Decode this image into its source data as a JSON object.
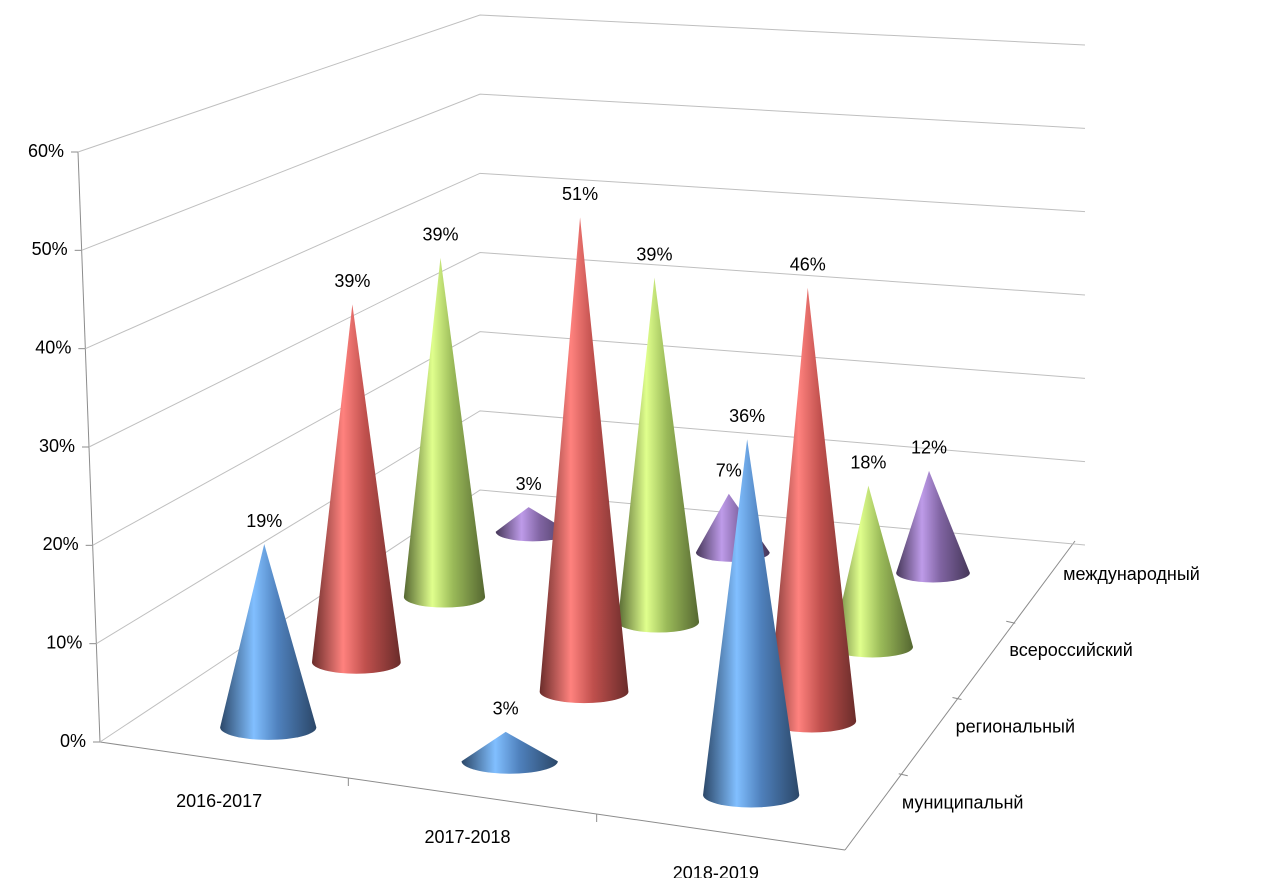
{
  "chart_data": {
    "type": "cone",
    "categories": [
      "2016-2017",
      "2017-2018",
      "2018-2019"
    ],
    "series": [
      {
        "name": "муниципальнй",
        "color": "#4f81bd",
        "values": [
          19,
          3,
          36
        ],
        "value_labels": [
          "19%",
          "3%",
          "36%"
        ]
      },
      {
        "name": "региональный",
        "color": "#c0504d",
        "values": [
          39,
          51,
          46
        ],
        "value_labels": [
          "39%",
          "51%",
          "46%"
        ]
      },
      {
        "name": "всероссийский",
        "color": "#9bbb59",
        "values": [
          39,
          39,
          18
        ],
        "value_labels": [
          "39%",
          "39%",
          "18%"
        ]
      },
      {
        "name": "международный",
        "color": "#8064a2",
        "values": [
          3,
          7,
          12
        ],
        "value_labels": [
          "3%",
          "7%",
          "12%"
        ]
      }
    ],
    "ylim": [
      0,
      60
    ],
    "yticks": [
      {
        "value": 0,
        "label": "0%"
      },
      {
        "value": 10,
        "label": "10%"
      },
      {
        "value": 20,
        "label": "20%"
      },
      {
        "value": 30,
        "label": "30%"
      },
      {
        "value": 40,
        "label": "40%"
      },
      {
        "value": 50,
        "label": "50%"
      },
      {
        "value": 60,
        "label": "60%"
      }
    ],
    "grid": true
  }
}
